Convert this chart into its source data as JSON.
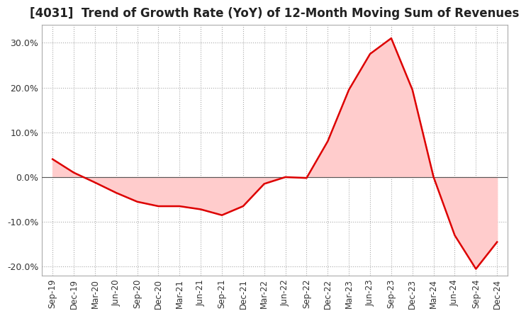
{
  "title": "[4031]  Trend of Growth Rate (YoY) of 12-Month Moving Sum of Revenues",
  "title_fontsize": 12,
  "line_color": "#dd0000",
  "background_color": "#ffffff",
  "plot_bg_color": "#ffffff",
  "grid_color": "#aaaaaa",
  "zero_line_color": "#555555",
  "ylim": [
    -0.22,
    0.34
  ],
  "yticks": [
    -0.2,
    -0.1,
    0.0,
    0.1,
    0.2,
    0.3
  ],
  "ytick_labels": [
    "-20.0%",
    "-10.0%",
    "0.0%",
    "10.0%",
    "20.0%",
    "30.0%"
  ],
  "x_labels": [
    "Sep-19",
    "Dec-19",
    "Mar-20",
    "Jun-20",
    "Sep-20",
    "Dec-20",
    "Mar-21",
    "Jun-21",
    "Sep-21",
    "Dec-21",
    "Mar-22",
    "Jun-22",
    "Sep-22",
    "Dec-22",
    "Mar-23",
    "Jun-23",
    "Sep-23",
    "Dec-23",
    "Mar-24",
    "Jun-24",
    "Sep-24",
    "Dec-24"
  ],
  "data_x": [
    0,
    1,
    2,
    3,
    4,
    5,
    6,
    7,
    8,
    9,
    10,
    11,
    12,
    13,
    14,
    15,
    16,
    17,
    18,
    19,
    20,
    21
  ],
  "data_y": [
    0.04,
    0.01,
    -0.012,
    -0.035,
    -0.055,
    -0.065,
    -0.065,
    -0.072,
    -0.085,
    -0.065,
    -0.015,
    0.0,
    -0.002,
    0.08,
    0.195,
    0.275,
    0.31,
    0.195,
    0.0,
    -0.13,
    -0.205,
    -0.145
  ]
}
